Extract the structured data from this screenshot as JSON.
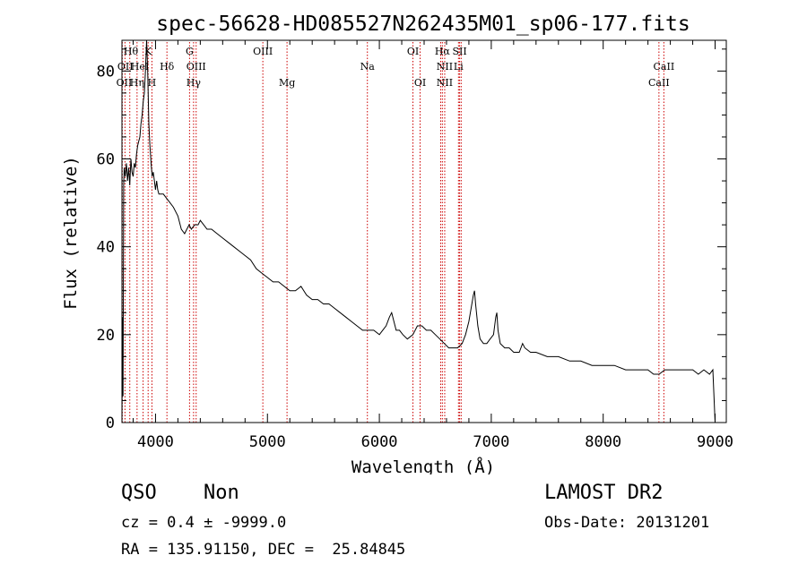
{
  "chart_data": {
    "type": "line",
    "title": "spec-56628-HD085527N262435M01_sp06-177.fits",
    "xlabel": "Wavelength (Å)",
    "ylabel": "Flux (relative)",
    "xlim": [
      3700,
      9100
    ],
    "ylim": [
      0,
      87
    ],
    "xticks": [
      4000,
      5000,
      6000,
      7000,
      8000,
      9000
    ],
    "yticks": [
      0,
      20,
      40,
      60,
      80
    ],
    "xtick_labels": [
      "4000",
      "5000",
      "6000",
      "7000",
      "8000",
      "9000"
    ],
    "ytick_labels": [
      "0",
      "20",
      "40",
      "60",
      "80"
    ],
    "series": [
      {
        "x": [
          3700,
          3705,
          3710,
          3715,
          3720,
          3730,
          3740,
          3750,
          3760,
          3770,
          3780,
          3790,
          3800,
          3810,
          3820,
          3830,
          3840,
          3850,
          3860,
          3870,
          3880,
          3890,
          3900,
          3910,
          3920,
          3930,
          3940,
          3950,
          3960,
          3970,
          3980,
          3990,
          4000,
          4010,
          4020,
          4030,
          4050,
          4070,
          4100,
          4130,
          4160,
          4200,
          4230,
          4260,
          4280,
          4300,
          4320,
          4350,
          4380,
          4400,
          4430,
          4460,
          4500,
          4550,
          4600,
          4650,
          4700,
          4750,
          4800,
          4850,
          4900,
          4950,
          5000,
          5050,
          5100,
          5150,
          5200,
          5250,
          5300,
          5350,
          5400,
          5450,
          5500,
          5550,
          5600,
          5650,
          5700,
          5750,
          5800,
          5850,
          5900,
          5950,
          6000,
          6030,
          6060,
          6090,
          6110,
          6130,
          6150,
          6180,
          6210,
          6250,
          6300,
          6340,
          6380,
          6420,
          6460,
          6500,
          6540,
          6580,
          6620,
          6660,
          6700,
          6740,
          6770,
          6800,
          6820,
          6840,
          6850,
          6860,
          6880,
          6900,
          6930,
          6960,
          6990,
          7020,
          7040,
          7050,
          7060,
          7080,
          7120,
          7160,
          7200,
          7250,
          7280,
          7300,
          7350,
          7400,
          7500,
          7600,
          7700,
          7800,
          7900,
          8000,
          8100,
          8200,
          8300,
          8400,
          8450,
          8500,
          8550,
          8600,
          8700,
          8800,
          8850,
          8900,
          8950,
          8980,
          9000
        ],
        "y": [
          0,
          24,
          6,
          54,
          58,
          56,
          59,
          55,
          58,
          54,
          60,
          57,
          56,
          59,
          58,
          61,
          63,
          64,
          65,
          68,
          70,
          73,
          75,
          80,
          87,
          80,
          68,
          63,
          59,
          56,
          57,
          55,
          53,
          55,
          53,
          52,
          52,
          52,
          51,
          50,
          49,
          47,
          44,
          43,
          44,
          45,
          44,
          45,
          45,
          46,
          45,
          44,
          44,
          43,
          42,
          41,
          40,
          39,
          38,
          37,
          35,
          34,
          33,
          32,
          32,
          31,
          30,
          30,
          31,
          29,
          28,
          28,
          27,
          27,
          26,
          25,
          24,
          23,
          22,
          21,
          21,
          21,
          20,
          21,
          22,
          24,
          25,
          23,
          21,
          21,
          20,
          19,
          20,
          22,
          22,
          21,
          21,
          20,
          19,
          18,
          17,
          17,
          17,
          18,
          20,
          23,
          26,
          29,
          30,
          27,
          22,
          19,
          18,
          18,
          19,
          20,
          24,
          25,
          21,
          18,
          17,
          17,
          16,
          16,
          18,
          17,
          16,
          16,
          15,
          15,
          14,
          14,
          13,
          13,
          13,
          12,
          12,
          12,
          11,
          11,
          12,
          12,
          12,
          12,
          11,
          12,
          11,
          12,
          0
        ]
      }
    ],
    "line_markers": [
      {
        "x": 3703,
        "top": "OII"
      },
      {
        "x": 3727,
        "top": "OII"
      },
      {
        "x": 3770,
        "top": "Hθ"
      },
      {
        "x": 3835,
        "top": "Hη"
      },
      {
        "x": 3889,
        "top": "HeI"
      },
      {
        "x": 3934,
        "top": "K"
      },
      {
        "x": 3968,
        "top": "H"
      },
      {
        "x": 4102,
        "top": "Hδ"
      },
      {
        "x": 4304,
        "top": "G"
      },
      {
        "x": 4340,
        "top": "Hγ"
      },
      {
        "x": 4363,
        "top": "OIII"
      },
      {
        "x": 4959,
        "top": "OIII"
      },
      {
        "x": 5175,
        "top": "Mg"
      },
      {
        "x": 5893,
        "top": "Na"
      },
      {
        "x": 6300,
        "top": "OI"
      },
      {
        "x": 6364,
        "top": "OI"
      },
      {
        "x": 6548,
        "top": "NII"
      },
      {
        "x": 6563,
        "top": "Hα"
      },
      {
        "x": 6584,
        "top": "NII"
      },
      {
        "x": 6707,
        "top": "Li"
      },
      {
        "x": 6717,
        "top": "SII"
      },
      {
        "x": 6731,
        "top": "SII"
      },
      {
        "x": 8498,
        "top": "CaII"
      },
      {
        "x": 8542,
        "top": "CaII"
      }
    ],
    "line_labels": [
      {
        "text": "Hθ",
        "x": 3780,
        "row": 1
      },
      {
        "text": "K",
        "x": 3934,
        "row": 1
      },
      {
        "text": "G",
        "x": 4304,
        "row": 1
      },
      {
        "text": "OIII",
        "x": 4959,
        "row": 1
      },
      {
        "text": "OI",
        "x": 6300,
        "row": 1
      },
      {
        "text": "Hα",
        "x": 6563,
        "row": 1
      },
      {
        "text": "SII",
        "x": 6717,
        "row": 1
      },
      {
        "text": "OII",
        "x": 3730,
        "row": 2
      },
      {
        "text": "HeI",
        "x": 3860,
        "row": 2
      },
      {
        "text": "Hδ",
        "x": 4102,
        "row": 2
      },
      {
        "text": "OIII",
        "x": 4363,
        "row": 2
      },
      {
        "text": "Na",
        "x": 5893,
        "row": 2
      },
      {
        "text": "NII",
        "x": 6584,
        "row": 2
      },
      {
        "text": "Li",
        "x": 6707,
        "row": 2
      },
      {
        "text": "CaII",
        "x": 8542,
        "row": 2
      },
      {
        "text": "OII",
        "x": 3720,
        "row": 3
      },
      {
        "text": "Hη",
        "x": 3835,
        "row": 3
      },
      {
        "text": "H",
        "x": 3968,
        "row": 3
      },
      {
        "text": "Hγ",
        "x": 4340,
        "row": 3
      },
      {
        "text": "Mg",
        "x": 5175,
        "row": 3
      },
      {
        "text": "OI",
        "x": 6364,
        "row": 3
      },
      {
        "text": "NII",
        "x": 6584,
        "row": 3
      },
      {
        "text": "CaII",
        "x": 8498,
        "row": 3
      }
    ],
    "grid": false,
    "colors": {
      "spectrum": "#000000",
      "marker": "#cc0000",
      "axes": "#000000"
    }
  },
  "info": {
    "class": "QSO",
    "subclass": "Non",
    "survey": "LAMOST DR2",
    "cz": "cz = 0.4 ± -9999.0",
    "obs_date": "Obs-Date: 20131201",
    "coords": "RA = 135.91150, DEC =  25.84845"
  }
}
